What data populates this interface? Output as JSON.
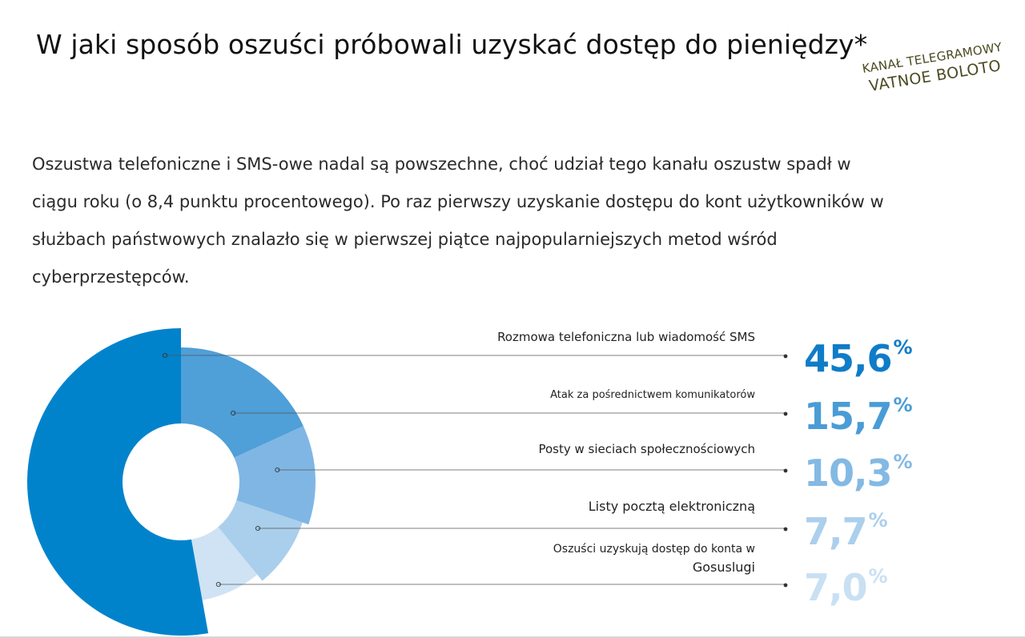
{
  "title": "W jaki sposób oszuści próbowali uzyskać dostęp do pieniędzy*",
  "watermark": {
    "line1": "KANAŁ TELEGRAMOWY",
    "line2": "VATNOE BOLOTO"
  },
  "description": {
    "lines": [
      "Oszustwa telefoniczne i SMS-owe nadal są powszechne, choć udział tego kanału oszustw spadł w",
      "ciągu roku (o 8,4 punktu procentowego). Po raz pierwszy uzyskanie dostępu do kont użytkowników w",
      "służbach państwowych znalazło się w pierwszej piątce najpopularniejszych metod wśród",
      "cyberprzestępców."
    ]
  },
  "colors": {
    "slice": [
      "#0183cc",
      "#4f9fd8",
      "#80b6e4",
      "#a9cfec",
      "#cfe3f5"
    ],
    "value": [
      "#0f7cc8",
      "#4a9cd6",
      "#83b9e3",
      "#abcfec",
      "#c9e0f3"
    ],
    "leader": "#555555"
  },
  "chart_data": {
    "type": "pie",
    "categories": [
      "Rozmowa telefoniczna lub wiadomość SMS",
      "Atak za pośrednictwem komunikatorów",
      "Posty w sieciach społecznościowych",
      "Listy pocztą elektroniczną",
      "Oszuści uzyskują dostęp do konta w Gosuslugi"
    ],
    "label_lines": [
      [
        "Rozmowa telefoniczna lub wiadomość SMS"
      ],
      [
        "Atak za pośrednictwem komunikatorów"
      ],
      [
        "Posty w sieciach społecznościowych"
      ],
      [
        "Listy pocztą elektroniczną"
      ],
      [
        "Oszuści uzyskują dostęp do konta w",
        "Gosuslugi"
      ]
    ],
    "values": [
      45.6,
      15.7,
      10.3,
      7.7,
      7.0
    ],
    "value_labels": [
      "45,6",
      "15,7",
      "10,3",
      "7,7",
      "7,0"
    ],
    "unit": "%"
  }
}
